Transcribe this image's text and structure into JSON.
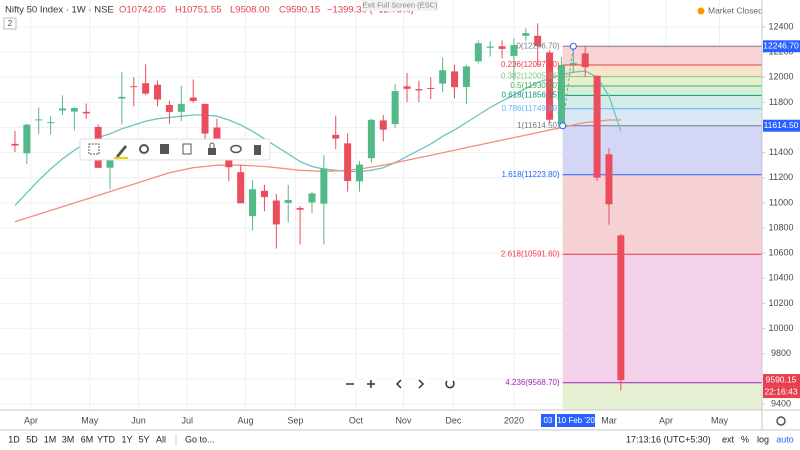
{
  "ui": {
    "symbol": "Nifty 50 Index · 1W · NSE",
    "open": "O10742.05",
    "high": "H10751.55",
    "low": "L9508.00",
    "close": "C9590.15",
    "change": "−1399.30 (−12.73%)",
    "exit_full_screen": "Exit Full Screen (ESC)",
    "market_status": "Market Closed",
    "pane_count": "2",
    "crosshair_labels": [
      "03",
      "10 Feb '20"
    ],
    "last_time": "22:16:43",
    "time_ranges": [
      "1D",
      "5D",
      "1M",
      "3M",
      "6M",
      "YTD",
      "1Y",
      "5Y",
      "All"
    ],
    "goto": "Go to...",
    "clock": "17:13:16 (UTC+5:30)",
    "axis_options": [
      "ext",
      "%",
      "log",
      "auto"
    ]
  },
  "chart_data": {
    "type": "candlestick",
    "categories": [
      null,
      null,
      null,
      null,
      null,
      null,
      null,
      null,
      null,
      null,
      null,
      null,
      null,
      null,
      null,
      null,
      null,
      null,
      null,
      null,
      null,
      null,
      null,
      null,
      null,
      null,
      null,
      null,
      null,
      null,
      null,
      null,
      null,
      null,
      null,
      null,
      null,
      null,
      null,
      null,
      null,
      null,
      null,
      null,
      null,
      null,
      null,
      null,
      null,
      null,
      null,
      null
    ],
    "open": [
      11470,
      11395,
      11665,
      11639,
      11736,
      11727,
      11725,
      11605,
      11280,
      11830,
      11929,
      11953,
      11941,
      11780,
      11725,
      11839,
      11788,
      11600,
      11415,
      11245,
      10895,
      11097,
      11019,
      11000,
      10960,
      11004,
      10994,
      11542,
      11474,
      11172,
      11356,
      11657,
      11627,
      11928,
      11906,
      11915,
      11950,
      12047,
      11923,
      12127,
      12235,
      12247,
      12170,
      12330,
      12330,
      12197,
      11627,
      12102,
      12190,
      12012,
      11387,
      10742.05
    ],
    "high": [
      11573,
      11630,
      11761,
      11689,
      11856,
      11762,
      11790,
      11625,
      11450,
      12041,
      12000,
      12103,
      11975,
      11814,
      11931,
      11982,
      11790,
      11670,
      11452,
      11301,
      11181,
      11145,
      11070,
      11142,
      10975,
      11084,
      11381,
      11695,
      11554,
      11335,
      11670,
      11700,
      11945,
      12034,
      11973,
      12000,
      12158,
      12100,
      12098,
      12293,
      12287,
      12294,
      12311,
      12389,
      12430,
      12216,
      12160,
      12247,
      12246,
      12012,
      11434,
      10751.55
    ],
    "low": [
      11405,
      11310,
      11550,
      11545,
      11700,
      11578,
      11670,
      11285,
      11108,
      11625,
      11768,
      11857,
      11770,
      11630,
      11651,
      11799,
      11461,
      11400,
      11173,
      10999,
      10782,
      10933,
      10637,
      10846,
      10670,
      10920,
      10670,
      11429,
      11090,
      11090,
      11320,
      11490,
      11595,
      11802,
      11802,
      11827,
      11880,
      11832,
      11788,
      12110,
      12165,
      12150,
      11974,
      12291,
      12087,
      11634,
      11614,
      12035,
      12004,
      11175,
      10827,
      9508
    ],
    "close": [
      11456,
      11623,
      11665,
      11643,
      11752,
      11755,
      11712,
      11279,
      11407,
      11844,
      11923,
      11870,
      11823,
      11724,
      11788,
      11811,
      11552,
      11419,
      11284,
      10997,
      11109,
      11047,
      10829,
      11023,
      10946,
      11076,
      11274,
      11512,
      11174,
      11305,
      11661,
      11583,
      11890,
      11908,
      11895,
      11914,
      12056,
      11921,
      12086,
      12271,
      12245,
      12226,
      12257,
      12352,
      12248,
      11662,
      12098,
      12113,
      12080,
      11201,
      10989,
      9590.15
    ],
    "up_color": "#53b987",
    "down_color": "#eb4d5c",
    "series": [
      {
        "color": "#6cc4bd",
        "values": [
          10980,
          11080,
          11180,
          11270,
          11350,
          11420,
          11480,
          11520,
          11550,
          11590,
          11620,
          11650,
          11670,
          11680,
          11690,
          11700,
          11700,
          11690,
          11660,
          11620,
          11570,
          11510,
          11450,
          11390,
          11330,
          11290,
          11270,
          11260,
          11250,
          11250,
          11260,
          11280,
          11320,
          11370,
          11420,
          11470,
          11530,
          11580,
          11640,
          11700,
          11760,
          11810,
          11860,
          11910,
          11960,
          11990,
          12020,
          12040,
          12050,
          12000,
          11850,
          11570
        ]
      },
      {
        "color": "#f0907f",
        "values": [
          10850,
          10880,
          10910,
          10940,
          10970,
          11000,
          11030,
          11060,
          11090,
          11120,
          11150,
          11180,
          11210,
          11240,
          11260,
          11280,
          11290,
          11300,
          11300,
          11300,
          11295,
          11290,
          11280,
          11270,
          11260,
          11255,
          11250,
          11255,
          11260,
          11270,
          11285,
          11300,
          11320,
          11340,
          11360,
          11380,
          11400,
          11420,
          11440,
          11460,
          11480,
          11500,
          11520,
          11540,
          11560,
          11580,
          11600,
          11620,
          11640,
          11650,
          11660,
          11660
        ]
      }
    ],
    "xlim": [
      -1.26,
      62.88
    ],
    "ylim": [
      9352,
      12615
    ],
    "yticks": [
      12400,
      12200,
      12000,
      11800,
      11600,
      11400,
      11200,
      11000,
      10800,
      10600,
      10400,
      10200,
      10000,
      9800,
      9600,
      9400
    ],
    "xticks": [
      {
        "value": 1.35,
        "label": "Apr"
      },
      {
        "value": 6.3,
        "label": "May"
      },
      {
        "value": 10.4,
        "label": "Jun"
      },
      {
        "value": 14.5,
        "label": "Jul"
      },
      {
        "value": 19.4,
        "label": "Aug"
      },
      {
        "value": 23.6,
        "label": "Sep"
      },
      {
        "value": 28.7,
        "label": "Oct"
      },
      {
        "value": 32.7,
        "label": "Nov"
      },
      {
        "value": 36.9,
        "label": "Dec"
      },
      {
        "value": 42,
        "label": "2020"
      },
      {
        "value": 50,
        "label": "Mar"
      },
      {
        "value": 54.8,
        "label": "Apr"
      },
      {
        "value": 59.3,
        "label": "May"
      }
    ],
    "grid": true,
    "fib_x": [
      46.1,
      47
    ],
    "fib_levels": [
      {
        "label": "0(12246.70)",
        "value": 12246.7,
        "color": "#787b86",
        "fill": "#f8d4d6"
      },
      {
        "label": "0.236(12097.50)",
        "value": 12097.5,
        "color": "#f23645",
        "fill": "#f7e6cc"
      },
      {
        "label": "0.382(12005.06)",
        "value": 12005.06,
        "color": "#81c784",
        "fill": "#e4f1cf"
      },
      {
        "label": "0.5(11930.60)",
        "value": 11930.6,
        "color": "#4caf50",
        "fill": "#d6efd8"
      },
      {
        "label": "0.618(11856.15)",
        "value": 11856.15,
        "color": "#089981",
        "fill": "#d2ece8"
      },
      {
        "label": "0.786(11749.99)",
        "value": 11749.99,
        "color": "#64b5f6",
        "fill": "#d8e8f5"
      },
      {
        "label": "1(11614.50)",
        "value": 11614.5,
        "color": "#787b86",
        "fill": "#d3d6f5"
      },
      {
        "label": "1.618(11223.80)",
        "value": 11223.8,
        "color": "#2962ff",
        "fill": "#f6d2d5"
      },
      {
        "label": "2.618(10591.60)",
        "value": 10591.6,
        "color": "#f23645",
        "fill": "#f4d2ec"
      },
      {
        "label": "4.236(9568.70)",
        "value": 9568.7,
        "color": "#9c27b0",
        "fill": "#e6f1d3"
      }
    ],
    "price_labels": [
      {
        "value": 12246.7,
        "label": "12246.70",
        "color": "#2962ff"
      },
      {
        "value": 11614.5,
        "label": "11614.50",
        "color": "#2962ff"
      },
      {
        "value": 9590.15,
        "label": "9590.15",
        "color": "#e5404f"
      }
    ]
  }
}
